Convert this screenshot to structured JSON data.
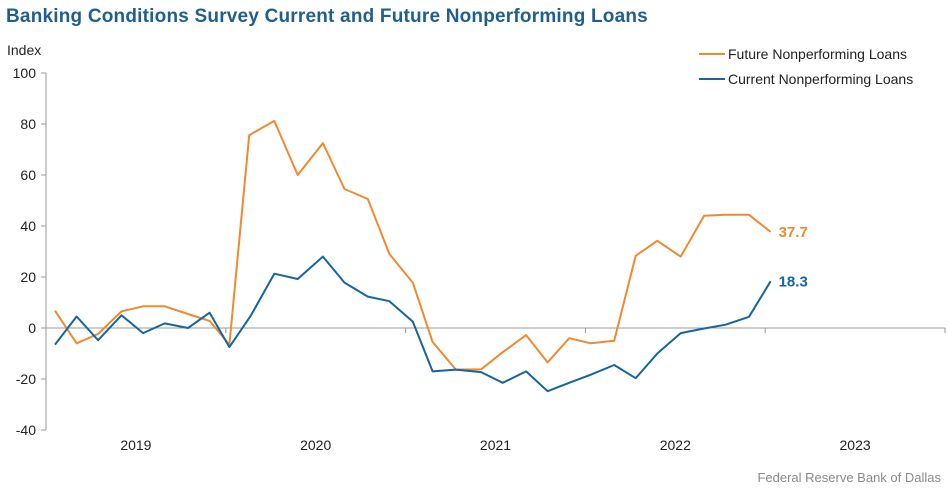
{
  "header": {
    "title": "Banking Conditions Survey Current and Future Nonperforming Loans",
    "unit_label": "Index"
  },
  "source": "Federal Reserve Bank of Dallas",
  "colors": {
    "future": "#f08a30",
    "current": "#1565a0",
    "axis": "#999999"
  },
  "chart_data": {
    "type": "line",
    "title": "Banking Conditions Survey Current and Future Nonperforming Loans",
    "ylabel": "Index",
    "xlabel": "",
    "ylim": [
      -40,
      100
    ],
    "yticks": [
      100,
      80,
      60,
      40,
      20,
      0,
      -20,
      -40
    ],
    "xlim": [
      2018.5,
      2023.5
    ],
    "xticks": [
      {
        "label": "2019",
        "value": 2019
      },
      {
        "label": "2020",
        "value": 2020
      },
      {
        "label": "2021",
        "value": 2021
      },
      {
        "label": "2022",
        "value": 2022
      },
      {
        "label": "2023",
        "value": 2023
      }
    ],
    "grid": false,
    "legend": "top-right",
    "series": [
      {
        "name": "Future Nonperforming Loans",
        "color": "#f08a30",
        "end_label": "37.7",
        "points": [
          [
            2018.55,
            6.8
          ],
          [
            2018.67,
            -6.0
          ],
          [
            2018.79,
            -2.3
          ],
          [
            2018.92,
            6.5
          ],
          [
            2019.04,
            8.5
          ],
          [
            2019.16,
            8.5
          ],
          [
            2019.29,
            5.5
          ],
          [
            2019.41,
            2.8
          ],
          [
            2019.52,
            -6.5
          ],
          [
            2019.63,
            75.6
          ],
          [
            2019.77,
            81.2
          ],
          [
            2019.9,
            60.0
          ],
          [
            2020.04,
            72.5
          ],
          [
            2020.16,
            54.5
          ],
          [
            2020.29,
            50.6
          ],
          [
            2020.41,
            29.0
          ],
          [
            2020.54,
            17.8
          ],
          [
            2020.65,
            -5.5
          ],
          [
            2020.78,
            -16.3
          ],
          [
            2020.92,
            -16.2
          ],
          [
            2021.04,
            -9.5
          ],
          [
            2021.17,
            -2.8
          ],
          [
            2021.29,
            -13.5
          ],
          [
            2021.41,
            -4.0
          ],
          [
            2021.53,
            -6.0
          ],
          [
            2021.66,
            -5.0
          ],
          [
            2021.78,
            28.3
          ],
          [
            2021.9,
            34.2
          ],
          [
            2022.03,
            28.0
          ],
          [
            2022.16,
            44.0
          ],
          [
            2022.28,
            44.4
          ],
          [
            2022.41,
            44.4
          ],
          [
            2022.53,
            37.7
          ]
        ]
      },
      {
        "name": "Current Nonperforming Loans",
        "color": "#1565a0",
        "end_label": "18.3",
        "points": [
          [
            2018.55,
            -6.5
          ],
          [
            2018.67,
            4.5
          ],
          [
            2018.79,
            -4.8
          ],
          [
            2018.92,
            5.0
          ],
          [
            2019.04,
            -2.0
          ],
          [
            2019.16,
            1.8
          ],
          [
            2019.29,
            0.0
          ],
          [
            2019.41,
            6.0
          ],
          [
            2019.52,
            -7.5
          ],
          [
            2019.64,
            5.0
          ],
          [
            2019.77,
            21.3
          ],
          [
            2019.9,
            19.2
          ],
          [
            2020.04,
            28.0
          ],
          [
            2020.16,
            17.8
          ],
          [
            2020.29,
            12.3
          ],
          [
            2020.41,
            10.5
          ],
          [
            2020.54,
            2.5
          ],
          [
            2020.65,
            -17.0
          ],
          [
            2020.78,
            -16.3
          ],
          [
            2020.92,
            -17.3
          ],
          [
            2021.04,
            -21.5
          ],
          [
            2021.17,
            -17.0
          ],
          [
            2021.29,
            -24.8
          ],
          [
            2021.41,
            -21.5
          ],
          [
            2021.53,
            -18.3
          ],
          [
            2021.66,
            -14.5
          ],
          [
            2021.78,
            -19.7
          ],
          [
            2021.9,
            -10.0
          ],
          [
            2022.03,
            -2.0
          ],
          [
            2022.16,
            -0.2
          ],
          [
            2022.28,
            1.3
          ],
          [
            2022.41,
            4.4
          ],
          [
            2022.53,
            18.3
          ]
        ]
      }
    ]
  }
}
